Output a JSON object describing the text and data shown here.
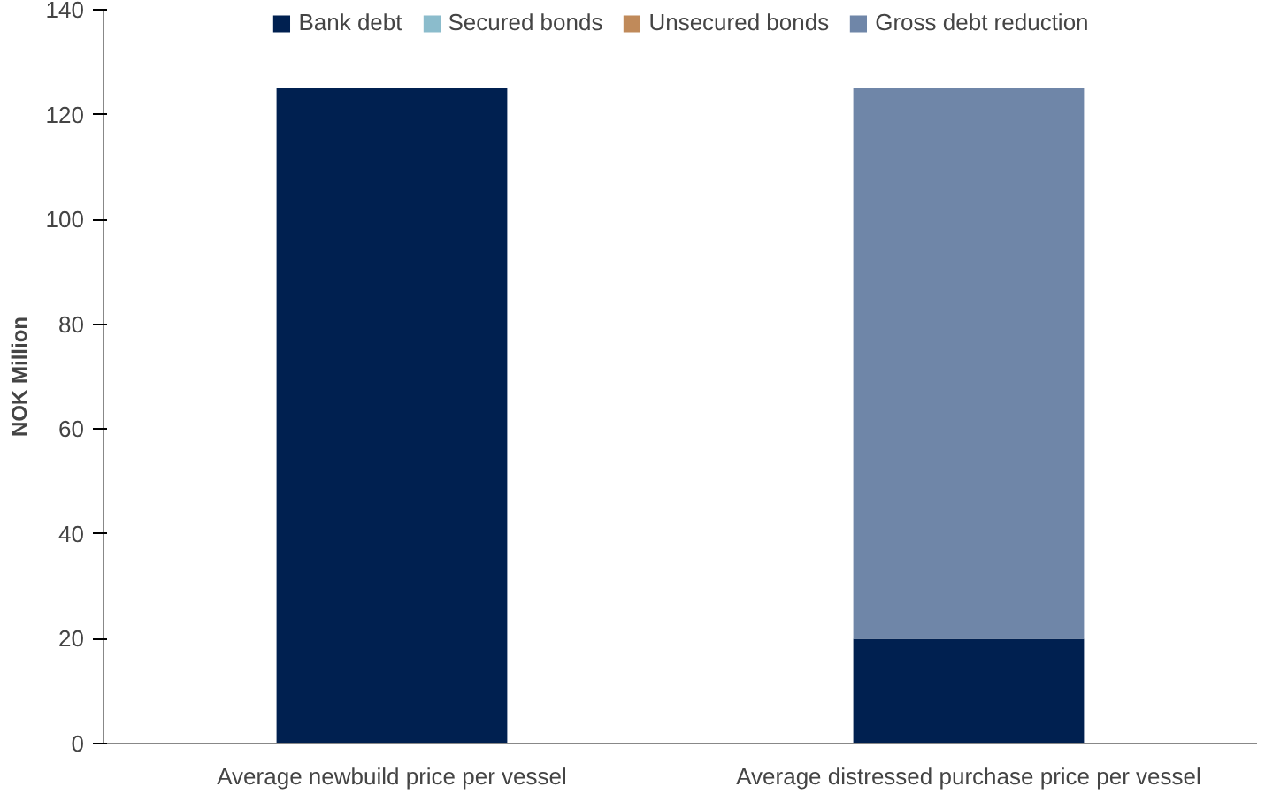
{
  "chart_data": {
    "type": "bar",
    "stacked": true,
    "ylabel": "NOK Million",
    "categories": [
      "Average newbuild price per vessel",
      "Average distressed purchase price per vessel"
    ],
    "series": [
      {
        "name": "Bank debt",
        "color": "#002050",
        "values": [
          125,
          20
        ]
      },
      {
        "name": "Secured bonds",
        "color": "#8bbccc",
        "values": [
          0,
          0
        ]
      },
      {
        "name": "Unsecured bonds",
        "color": "#c08a5a",
        "values": [
          0,
          0
        ]
      },
      {
        "name": "Gross debt reduction",
        "color": "#6f86a8",
        "values": [
          0,
          105
        ]
      }
    ],
    "ylim": [
      0,
      140
    ],
    "yticks": [
      0,
      20,
      40,
      60,
      80,
      100,
      120,
      140
    ],
    "grid": false,
    "legend": "top"
  }
}
